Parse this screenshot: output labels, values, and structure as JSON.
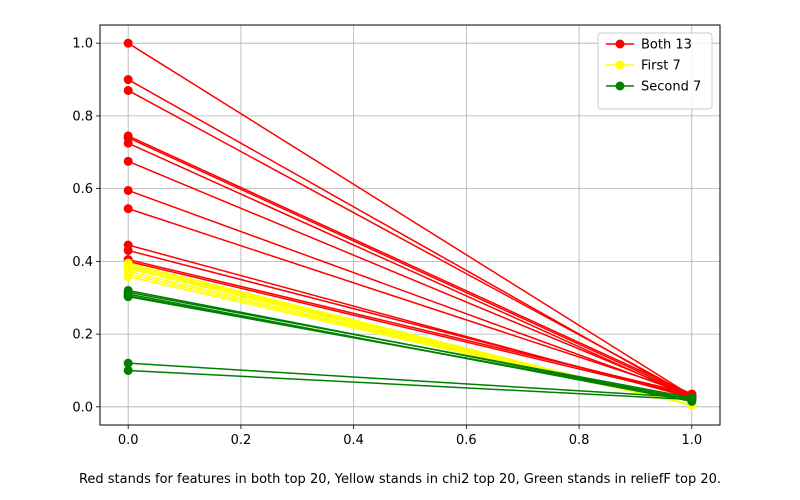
{
  "chart_data": {
    "type": "line",
    "x": [
      0,
      1
    ],
    "xlim": [
      -0.05,
      1.05
    ],
    "ylim": [
      -0.05,
      1.05
    ],
    "xticks": [
      "0.0",
      "0.2",
      "0.4",
      "0.6",
      "0.8",
      "1.0"
    ],
    "yticks": [
      "0.0",
      "0.2",
      "0.4",
      "0.6",
      "0.8",
      "1.0"
    ],
    "grid": true,
    "legend": {
      "placement": "top-right",
      "entries": [
        {
          "label": "Both 13",
          "color": "#ff0000"
        },
        {
          "label": "First 7",
          "color": "#ffff00"
        },
        {
          "label": "Second 7",
          "color": "#008000"
        }
      ]
    },
    "groups": [
      {
        "color": "#ff0000",
        "lines": [
          [
            1.0,
            0.03
          ],
          [
            0.9,
            0.025
          ],
          [
            0.87,
            0.03
          ],
          [
            0.745,
            0.035
          ],
          [
            0.74,
            0.03
          ],
          [
            0.725,
            0.025
          ],
          [
            0.675,
            0.03
          ],
          [
            0.595,
            0.03
          ],
          [
            0.545,
            0.035
          ],
          [
            0.445,
            0.025
          ],
          [
            0.43,
            0.03
          ],
          [
            0.405,
            0.035
          ],
          [
            0.4,
            0.03
          ]
        ]
      },
      {
        "color": "#ffff00",
        "lines": [
          [
            0.395,
            0.005
          ],
          [
            0.39,
            0.005
          ],
          [
            0.385,
            0.005
          ],
          [
            0.38,
            0.005
          ],
          [
            0.372,
            0.005
          ],
          [
            0.365,
            0.005
          ],
          [
            0.358,
            0.005
          ]
        ]
      },
      {
        "color": "#008000",
        "lines": [
          [
            0.32,
            0.02
          ],
          [
            0.315,
            0.025
          ],
          [
            0.31,
            0.015
          ],
          [
            0.305,
            0.02
          ],
          [
            0.303,
            0.02
          ],
          [
            0.12,
            0.025
          ],
          [
            0.1,
            0.02
          ]
        ]
      }
    ]
  },
  "caption": "Red stands for features in both top 20, Yellow stands in chi2 top 20, Green stands in reliefF top 20."
}
